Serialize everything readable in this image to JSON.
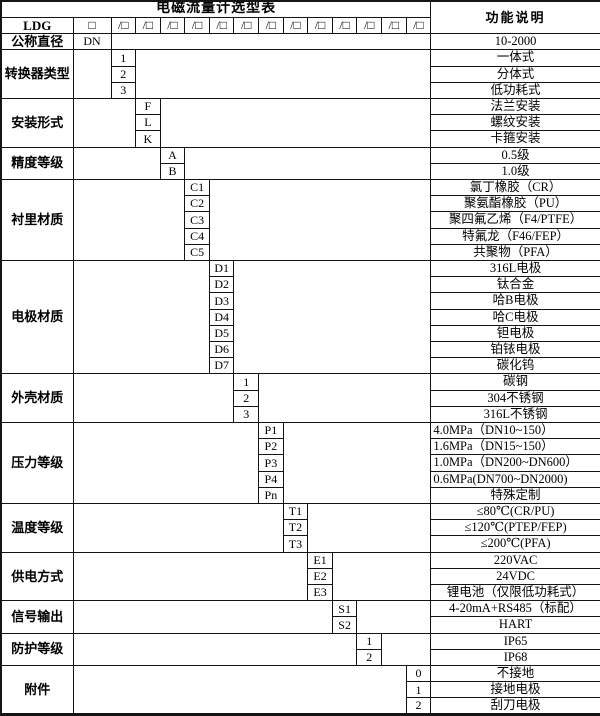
{
  "title": "电磁流量计选型表",
  "function_header": "功能说明",
  "model_code": {
    "series_label": "LDG",
    "base_slot": "□",
    "option_slot": "/□"
  },
  "grid": {
    "code_columns": 13
  },
  "sections": [
    {
      "key": "nominal-diameter",
      "label": "公称直径",
      "code_column": 0,
      "codes": [
        "DN"
      ],
      "descriptions": [
        "10-2000"
      ]
    },
    {
      "key": "converter-type",
      "label": "转换器类型",
      "code_column": 1,
      "codes": [
        "1",
        "2",
        "3"
      ],
      "descriptions": [
        "一体式",
        "分体式",
        "低功耗式"
      ]
    },
    {
      "key": "installation-type",
      "label": "安装形式",
      "code_column": 2,
      "codes": [
        "F",
        "L",
        "K"
      ],
      "descriptions": [
        "法兰安装",
        "螺纹安装",
        "卡箍安装"
      ]
    },
    {
      "key": "accuracy-class",
      "label": "精度等级",
      "code_column": 3,
      "codes": [
        "A",
        "B"
      ],
      "descriptions": [
        "0.5级",
        "1.0级"
      ]
    },
    {
      "key": "liner-material",
      "label": "衬里材质",
      "code_column": 4,
      "codes": [
        "C1",
        "C2",
        "C3",
        "C4",
        "C5"
      ],
      "descriptions": [
        "氯丁橡胶（CR）",
        "聚氨酯橡胶（PU）",
        "聚四氟乙烯（F4/PTFE）",
        "特氟龙（F46/FEP）",
        "共聚物（PFA）"
      ]
    },
    {
      "key": "electrode-material",
      "label": "电极材质",
      "code_column": 5,
      "codes": [
        "D1",
        "D2",
        "D3",
        "D4",
        "D5",
        "D6",
        "D7"
      ],
      "descriptions": [
        "316L电极",
        "钛合金",
        "哈B电极",
        "哈C电极",
        "钽电极",
        "铂铱电极",
        "碳化钨"
      ]
    },
    {
      "key": "housing-material",
      "label": "外壳材质",
      "code_column": 6,
      "codes": [
        "1",
        "2",
        "3"
      ],
      "descriptions": [
        "碳钢",
        "304不锈钢",
        "316L不锈钢"
      ]
    },
    {
      "key": "pressure-rating",
      "label": "压力等级",
      "code_column": 7,
      "codes": [
        "P1",
        "P2",
        "P3",
        "P4",
        "Pn"
      ],
      "descriptions": [
        "4.0MPa（DN10~150）",
        "1.6MPa（DN15~150）",
        "1.0MPa（DN200~DN600）",
        "0.6MPa(DN700~DN2000)",
        "特殊定制"
      ],
      "desc_align": [
        "left",
        "left",
        "left",
        "left",
        "center"
      ]
    },
    {
      "key": "temperature-rating",
      "label": "温度等级",
      "code_column": 8,
      "codes": [
        "T1",
        "T2",
        "T3"
      ],
      "descriptions": [
        "≤80℃(CR/PU)",
        "≤120℃(PTEP/FEP)",
        "≤200℃(PFA)"
      ]
    },
    {
      "key": "power-supply",
      "label": "供电方式",
      "code_column": 9,
      "codes": [
        "E1",
        "E2",
        "E3"
      ],
      "descriptions": [
        "220VAC",
        "24VDC",
        "锂电池（仅限低功耗式）"
      ]
    },
    {
      "key": "signal-output",
      "label": "信号输出",
      "code_column": 10,
      "codes": [
        "S1",
        "S2"
      ],
      "descriptions": [
        "4-20mA+RS485（标配）",
        "HART"
      ]
    },
    {
      "key": "protection-rating",
      "label": "防护等级",
      "code_column": 11,
      "codes": [
        "1",
        "2"
      ],
      "descriptions": [
        "IP65",
        "IP68"
      ]
    },
    {
      "key": "accessories",
      "label": "附件",
      "code_column": 13,
      "codes": [
        "0",
        "1",
        "2"
      ],
      "descriptions": [
        "不接地",
        "接地电极",
        "刮刀电极"
      ]
    }
  ]
}
